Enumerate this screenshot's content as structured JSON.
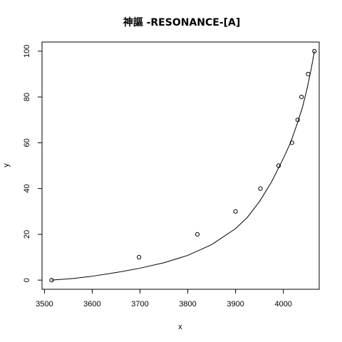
{
  "chart_data": {
    "type": "scatter",
    "title": "神謳 -RESONANCE-[A]",
    "xlabel": "x",
    "ylabel": "y",
    "xlim": [
      3495,
      4075
    ],
    "ylim": [
      -4,
      104
    ],
    "x_ticks": [
      3500,
      3600,
      3700,
      3800,
      3900,
      4000
    ],
    "y_ticks": [
      0,
      20,
      40,
      60,
      80,
      100
    ],
    "grid": false,
    "legend": "none",
    "points": {
      "x": [
        3515,
        3698,
        3820,
        3900,
        3952,
        3990,
        4018,
        4030,
        4038,
        4052,
        4065
      ],
      "y": [
        0,
        10,
        20,
        30,
        40,
        50,
        60,
        70,
        80,
        90,
        100
      ]
    },
    "fit_curve": {
      "x": [
        3515,
        3560,
        3600,
        3650,
        3700,
        3750,
        3800,
        3850,
        3900,
        3925,
        3950,
        3975,
        4000,
        4015,
        4030,
        4040,
        4050,
        4058,
        4065
      ],
      "y": [
        0,
        0.7,
        1.7,
        3.3,
        5.2,
        7.6,
        10.8,
        15.5,
        22.5,
        27.5,
        34.3,
        42.8,
        53.2,
        60.0,
        69.0,
        75.5,
        84.0,
        92.0,
        100
      ]
    }
  }
}
